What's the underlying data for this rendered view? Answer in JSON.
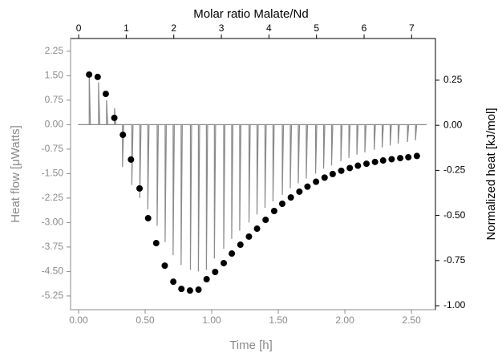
{
  "chart_data": {
    "type": "thermogram",
    "xlabel": "Time [h]",
    "ylabel": "Heat flow [μWatts]",
    "x2label": "Molar ratio Malate/Nd",
    "y2label": "Normalized heat [kJ/mol]",
    "xlim": [
      -0.06,
      2.68
    ],
    "xticks": [
      {
        "value": 0,
        "label": "0.00"
      },
      {
        "value": 0.5,
        "label": "0.50"
      },
      {
        "value": 1,
        "label": "1.00"
      },
      {
        "value": 1.5,
        "label": "1.50"
      },
      {
        "value": 2,
        "label": "2.00"
      },
      {
        "value": 2.5,
        "label": "2.50"
      }
    ],
    "x2lim": [
      -0.17,
      7.5
    ],
    "x2ticks": [
      0,
      1,
      2,
      3,
      4,
      5,
      6,
      7
    ],
    "ylim": [
      -5.67,
      2.64
    ],
    "yticks": [
      2.25,
      {
        "value": 1.5,
        "label": "1.50"
      },
      0.75,
      {
        "value": 0,
        "label": "0.00"
      },
      -0.75,
      {
        "value": -1.5,
        "label": "-1.50"
      },
      -2.25,
      {
        "value": -3,
        "label": "-3.00"
      },
      -3.75,
      {
        "value": -4.5,
        "label": "-4.50"
      },
      -5.25
    ],
    "y2lim": [
      -1.022,
      0.481
    ],
    "y2ticks": [
      0.25,
      {
        "value": 0,
        "label": "0.00"
      },
      -0.25,
      {
        "value": -0.5,
        "label": "-0.50"
      },
      -0.75,
      {
        "value": -1,
        "label": "-1.00"
      }
    ],
    "series": [
      {
        "type": "spike",
        "color": "#8a8a8a",
        "x": [
          0.08,
          0.15,
          0.21,
          0.27,
          0.33,
          0.4,
          0.46,
          0.52,
          0.59,
          0.65,
          0.71,
          0.77,
          0.84,
          0.9,
          0.96,
          1.02,
          1.09,
          1.15,
          1.21,
          1.28,
          1.34,
          1.4,
          1.46,
          1.53,
          1.59,
          1.65,
          1.71,
          1.78,
          1.84,
          1.9,
          1.97,
          2.03,
          2.09,
          2.15,
          2.22,
          2.28,
          2.34,
          2.4,
          2.47,
          2.53
        ],
        "values": [
          1.57,
          1.3,
          0.75,
          0.5,
          -1.3,
          -1.85,
          -2.25,
          -2.6,
          -3.1,
          -3.6,
          -4.0,
          -4.3,
          -4.45,
          -4.5,
          -4.45,
          -4.1,
          -3.8,
          -3.5,
          -3.25,
          -3.0,
          -2.75,
          -2.55,
          -2.35,
          -2.15,
          -1.95,
          -1.8,
          -1.65,
          -1.5,
          -1.35,
          -1.25,
          -1.12,
          -1.02,
          -0.92,
          -0.85,
          -0.77,
          -0.7,
          -0.64,
          -0.58,
          -0.53,
          -0.48
        ]
      },
      {
        "type": "scatter",
        "axis": "y2",
        "xaxis": "x2",
        "color": "#000000",
        "x": [
          0.22,
          0.4,
          0.57,
          0.75,
          0.93,
          1.1,
          1.28,
          1.46,
          1.63,
          1.81,
          1.99,
          2.16,
          2.34,
          2.52,
          2.69,
          2.87,
          3.05,
          3.22,
          3.4,
          3.58,
          3.75,
          3.93,
          4.11,
          4.28,
          4.46,
          4.64,
          4.81,
          4.99,
          5.17,
          5.34,
          5.52,
          5.7,
          5.87,
          6.05,
          6.23,
          6.4,
          6.58,
          6.76,
          6.93,
          7.11
        ],
        "values": [
          0.281,
          0.268,
          0.174,
          0.041,
          -0.053,
          -0.19,
          -0.35,
          -0.515,
          -0.653,
          -0.778,
          -0.867,
          -0.907,
          -0.916,
          -0.911,
          -0.853,
          -0.813,
          -0.764,
          -0.711,
          -0.662,
          -0.617,
          -0.573,
          -0.524,
          -0.475,
          -0.435,
          -0.4,
          -0.368,
          -0.34,
          -0.313,
          -0.29,
          -0.27,
          -0.252,
          -0.237,
          -0.224,
          -0.213,
          -0.203,
          -0.195,
          -0.188,
          -0.182,
          -0.177,
          -0.17
        ]
      }
    ]
  }
}
